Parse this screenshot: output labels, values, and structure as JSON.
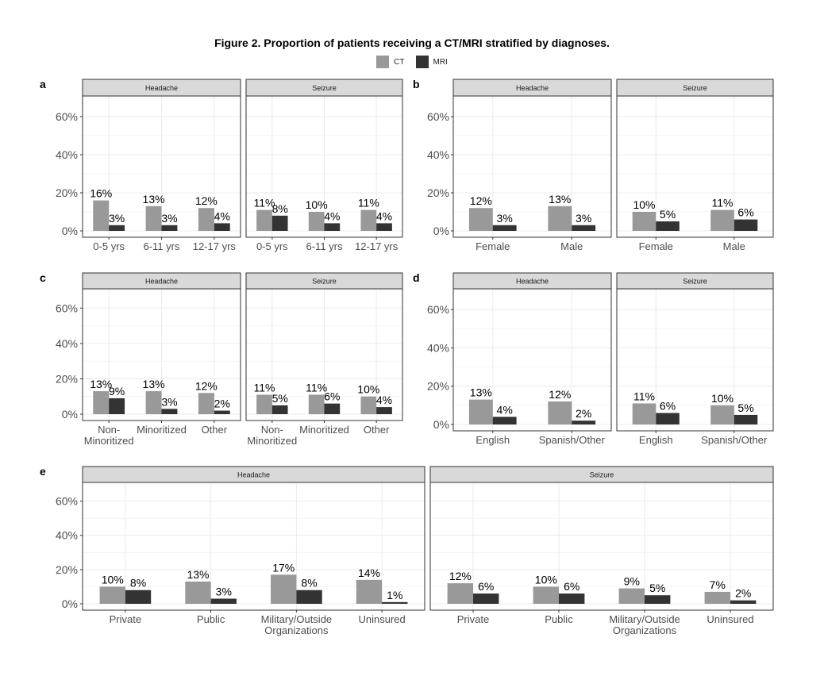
{
  "title": "Figure 2. Proportion of patients receiving a CT/MRI stratified by diagnoses.",
  "legend": [
    {
      "name": "CT",
      "color": "#999999"
    },
    {
      "name": "MRI",
      "color": "#333333"
    }
  ],
  "chart_data": [
    {
      "panel": "a",
      "type": "bar",
      "ylim": [
        0,
        0.7
      ],
      "yticks": [
        "0%",
        "20%",
        "40%",
        "60%"
      ],
      "facets": [
        {
          "strip": "Headache",
          "categories": [
            [
              "0-5 yrs"
            ],
            [
              "6-11 yrs"
            ],
            [
              "12-17 yrs"
            ]
          ],
          "series": [
            {
              "name": "CT",
              "values": [
                0.16,
                0.13,
                0.12
              ],
              "labels": [
                "16%",
                "13%",
                "12%"
              ]
            },
            {
              "name": "MRI",
              "values": [
                0.03,
                0.03,
                0.04
              ],
              "labels": [
                "3%",
                "3%",
                "4%"
              ]
            }
          ]
        },
        {
          "strip": "Seizure",
          "categories": [
            [
              "0-5 yrs"
            ],
            [
              "6-11 yrs"
            ],
            [
              "12-17 yrs"
            ]
          ],
          "series": [
            {
              "name": "CT",
              "values": [
                0.11,
                0.1,
                0.11
              ],
              "labels": [
                "11%",
                "10%",
                "11%"
              ]
            },
            {
              "name": "MRI",
              "values": [
                0.08,
                0.04,
                0.04
              ],
              "labels": [
                "8%",
                "4%",
                "4%"
              ]
            }
          ]
        }
      ]
    },
    {
      "panel": "b",
      "type": "bar",
      "ylim": [
        0,
        0.7
      ],
      "yticks": [
        "0%",
        "20%",
        "40%",
        "60%"
      ],
      "facets": [
        {
          "strip": "Headache",
          "categories": [
            [
              "Female"
            ],
            [
              "Male"
            ]
          ],
          "series": [
            {
              "name": "CT",
              "values": [
                0.12,
                0.13
              ],
              "labels": [
                "12%",
                "13%"
              ]
            },
            {
              "name": "MRI",
              "values": [
                0.03,
                0.03
              ],
              "labels": [
                "3%",
                "3%"
              ]
            }
          ]
        },
        {
          "strip": "Seizure",
          "categories": [
            [
              "Female"
            ],
            [
              "Male"
            ]
          ],
          "series": [
            {
              "name": "CT",
              "values": [
                0.1,
                0.11
              ],
              "labels": [
                "10%",
                "11%"
              ]
            },
            {
              "name": "MRI",
              "values": [
                0.05,
                0.06
              ],
              "labels": [
                "5%",
                "6%"
              ]
            }
          ]
        }
      ]
    },
    {
      "panel": "c",
      "type": "bar",
      "ylim": [
        0,
        0.7
      ],
      "yticks": [
        "0%",
        "20%",
        "40%",
        "60%"
      ],
      "facets": [
        {
          "strip": "Headache",
          "categories": [
            [
              "Non-",
              "Minoritized"
            ],
            [
              "Minoritized"
            ],
            [
              "Other"
            ]
          ],
          "series": [
            {
              "name": "CT",
              "values": [
                0.13,
                0.13,
                0.12
              ],
              "labels": [
                "13%",
                "13%",
                "12%"
              ]
            },
            {
              "name": "MRI",
              "values": [
                0.09,
                0.03,
                0.02
              ],
              "labels": [
                "9%",
                "3%",
                "2%"
              ]
            }
          ]
        },
        {
          "strip": "Seizure",
          "categories": [
            [
              "Non-",
              "Minoritized"
            ],
            [
              "Minoritized"
            ],
            [
              "Other"
            ]
          ],
          "series": [
            {
              "name": "CT",
              "values": [
                0.11,
                0.11,
                0.1
              ],
              "labels": [
                "11%",
                "11%",
                "10%"
              ]
            },
            {
              "name": "MRI",
              "values": [
                0.05,
                0.06,
                0.04
              ],
              "labels": [
                "5%",
                "6%",
                "4%"
              ]
            }
          ]
        }
      ]
    },
    {
      "panel": "d",
      "type": "bar",
      "ylim": [
        0,
        0.7
      ],
      "yticks": [
        "0%",
        "20%",
        "40%",
        "60%"
      ],
      "facets": [
        {
          "strip": "Headache",
          "categories": [
            [
              "English"
            ],
            [
              "Spanish/Other"
            ]
          ],
          "series": [
            {
              "name": "CT",
              "values": [
                0.13,
                0.12
              ],
              "labels": [
                "13%",
                "12%"
              ]
            },
            {
              "name": "MRI",
              "values": [
                0.04,
                0.02
              ],
              "labels": [
                "4%",
                "2%"
              ]
            }
          ]
        },
        {
          "strip": "Seizure",
          "categories": [
            [
              "English"
            ],
            [
              "Spanish/Other"
            ]
          ],
          "series": [
            {
              "name": "CT",
              "values": [
                0.11,
                0.1
              ],
              "labels": [
                "11%",
                "10%"
              ]
            },
            {
              "name": "MRI",
              "values": [
                0.06,
                0.05
              ],
              "labels": [
                "6%",
                "5%"
              ]
            }
          ]
        }
      ]
    },
    {
      "panel": "e",
      "type": "bar",
      "ylim": [
        0,
        0.7
      ],
      "yticks": [
        "0%",
        "20%",
        "40%",
        "60%"
      ],
      "facets": [
        {
          "strip": "Headache",
          "categories": [
            [
              "Private"
            ],
            [
              "Public"
            ],
            [
              "Military/Outside",
              "Organizations"
            ],
            [
              "Uninsured"
            ]
          ],
          "series": [
            {
              "name": "CT",
              "values": [
                0.1,
                0.13,
                0.17,
                0.14
              ],
              "labels": [
                "10%",
                "13%",
                "17%",
                "14%"
              ]
            },
            {
              "name": "MRI",
              "values": [
                0.08,
                0.03,
                0.08,
                0.01
              ],
              "labels": [
                "8%",
                "3%",
                "8%",
                "1%"
              ]
            }
          ]
        },
        {
          "strip": "Seizure",
          "categories": [
            [
              "Private"
            ],
            [
              "Public"
            ],
            [
              "Military/Outside",
              "Organizations"
            ],
            [
              "Uninsured"
            ]
          ],
          "series": [
            {
              "name": "CT",
              "values": [
                0.12,
                0.1,
                0.09,
                0.07
              ],
              "labels": [
                "12%",
                "10%",
                "9%",
                "7%"
              ]
            },
            {
              "name": "MRI",
              "values": [
                0.06,
                0.06,
                0.05,
                0.02
              ],
              "labels": [
                "6%",
                "6%",
                "5%",
                "2%"
              ]
            }
          ]
        }
      ]
    }
  ]
}
